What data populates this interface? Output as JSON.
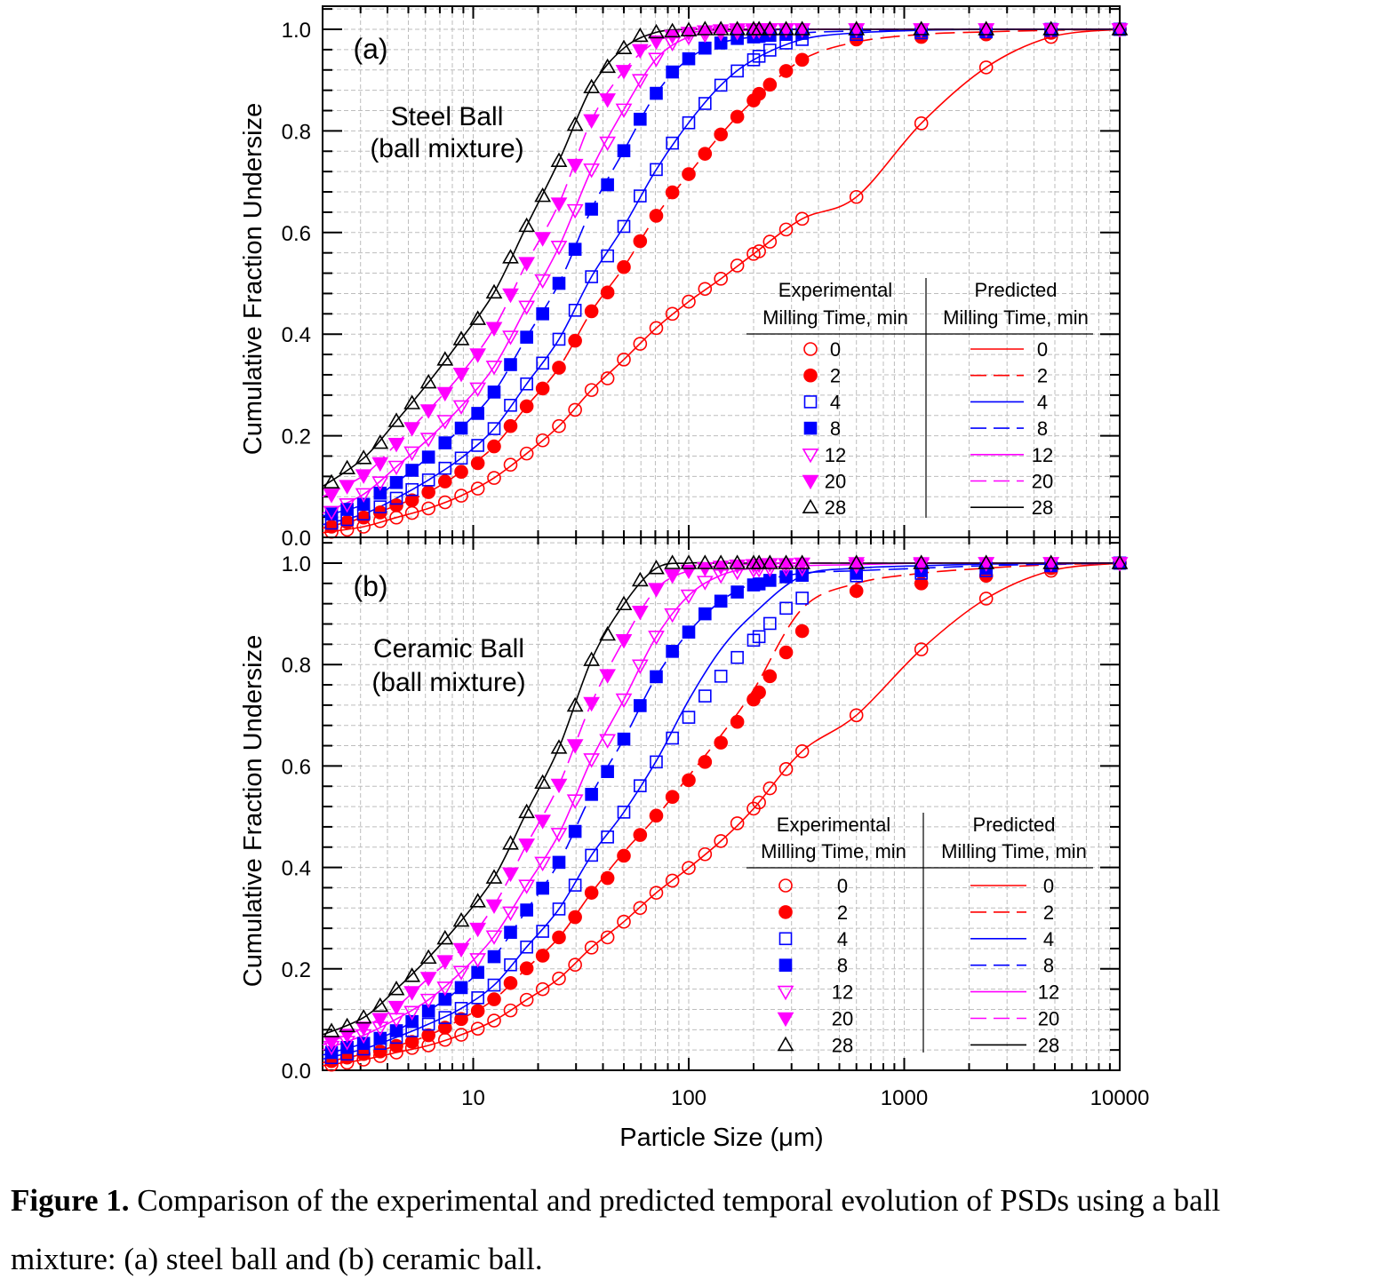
{
  "chart_data": {
    "type": "scatter",
    "x_axis": {
      "label": "Particle Size (μm)",
      "scale": "log",
      "range": [
        2,
        10000
      ],
      "ticks": [
        10,
        100,
        1000,
        10000
      ],
      "tick_labels": [
        "10",
        "100",
        "1000",
        "10000"
      ]
    },
    "y_axis": {
      "label": "Cumulative Fraction Undersize",
      "ticks": [
        0,
        0.2,
        0.4,
        0.6,
        0.8,
        1.0
      ],
      "tick_labels": [
        "0.0",
        "0.2",
        "0.4",
        "0.6",
        "0.8",
        "1.0"
      ]
    },
    "grid": true,
    "x_experimental": [
      2.2,
      2.6,
      3.1,
      3.7,
      4.4,
      5.2,
      6.2,
      7.4,
      8.8,
      10.5,
      12.5,
      14.9,
      17.7,
      21,
      25,
      29.7,
      35.4,
      42,
      50,
      59.5,
      70.7,
      84,
      100,
      119,
      141,
      168,
      200,
      212,
      238,
      283,
      336,
      600,
      1200,
      2400,
      4800,
      10000
    ],
    "x_predicted": [
      2,
      3.1,
      4.4,
      6.2,
      8.8,
      12.5,
      17.7,
      25,
      35.4,
      50,
      70.7,
      100,
      141,
      200,
      336,
      600,
      1200,
      2400,
      4800,
      10000
    ],
    "legend": {
      "experimental_header": [
        "Experimental",
        "Milling Time, min"
      ],
      "predicted_header": [
        "Predicted",
        "Milling Time, min"
      ],
      "placement": "bottom-right"
    },
    "series_styles": [
      {
        "name": "0",
        "color": "#ff0000",
        "marker": "open-circle",
        "line": "solid"
      },
      {
        "name": "2",
        "color": "#ff0000",
        "marker": "filled-circle",
        "line": "dashed"
      },
      {
        "name": "4",
        "color": "#0000ff",
        "marker": "open-square",
        "line": "solid"
      },
      {
        "name": "8",
        "color": "#0000ff",
        "marker": "filled-square",
        "line": "dashed"
      },
      {
        "name": "12",
        "color": "#ff00ff",
        "marker": "open-down-triangle",
        "line": "solid"
      },
      {
        "name": "20",
        "color": "#ff00ff",
        "marker": "filled-down-triangle",
        "line": "dashed"
      },
      {
        "name": "28",
        "color": "#000000",
        "marker": "open-up-triangle",
        "line": "solid"
      }
    ],
    "panels": [
      {
        "label": "(a)",
        "title_lines": [
          "Steel Ball",
          "(ball mixture)"
        ],
        "ylim": [
          0,
          1.045
        ],
        "experimental": [
          [
            0.011,
            0.015,
            0.021,
            0.032,
            0.039,
            0.048,
            0.057,
            0.069,
            0.082,
            0.096,
            0.117,
            0.143,
            0.165,
            0.191,
            0.219,
            0.251,
            0.29,
            0.313,
            0.35,
            0.381,
            0.412,
            0.44,
            0.464,
            0.489,
            0.509,
            0.535,
            0.558,
            0.563,
            0.582,
            0.606,
            0.627,
            0.67,
            0.815,
            0.925,
            0.985,
            1.0
          ],
          [
            0.021,
            0.03,
            0.039,
            0.049,
            0.063,
            0.073,
            0.089,
            0.11,
            0.129,
            0.146,
            0.179,
            0.219,
            0.258,
            0.293,
            0.334,
            0.387,
            0.445,
            0.482,
            0.532,
            0.583,
            0.633,
            0.679,
            0.715,
            0.755,
            0.793,
            0.828,
            0.86,
            0.873,
            0.891,
            0.918,
            0.94,
            0.98,
            0.985,
            0.99,
            0.993,
            1.0
          ],
          [
            0.028,
            0.035,
            0.046,
            0.06,
            0.077,
            0.094,
            0.113,
            0.136,
            0.156,
            0.181,
            0.214,
            0.26,
            0.302,
            0.343,
            0.39,
            0.447,
            0.513,
            0.554,
            0.612,
            0.672,
            0.724,
            0.776,
            0.816,
            0.854,
            0.89,
            0.918,
            0.94,
            0.947,
            0.959,
            0.973,
            0.98,
            0.99,
            0.993,
            0.995,
            0.998,
            1.0
          ],
          [
            0.046,
            0.055,
            0.065,
            0.087,
            0.108,
            0.132,
            0.158,
            0.186,
            0.215,
            0.244,
            0.286,
            0.34,
            0.394,
            0.44,
            0.5,
            0.567,
            0.646,
            0.694,
            0.761,
            0.823,
            0.874,
            0.916,
            0.942,
            0.963,
            0.973,
            0.982,
            0.985,
            0.986,
            0.988,
            0.99,
            0.992,
            0.995,
            0.997,
            0.998,
            1.0,
            1.0
          ],
          [
            0.05,
            0.065,
            0.085,
            0.108,
            0.139,
            0.167,
            0.194,
            0.229,
            0.258,
            0.293,
            0.336,
            0.395,
            0.454,
            0.506,
            0.572,
            0.644,
            0.724,
            0.777,
            0.842,
            0.9,
            0.942,
            0.973,
            0.985,
            0.99,
            0.993,
            0.995,
            0.997,
            0.998,
            1,
            1,
            1,
            1,
            1,
            1,
            1,
            1
          ],
          [
            0.084,
            0.101,
            0.122,
            0.146,
            0.184,
            0.215,
            0.25,
            0.284,
            0.322,
            0.36,
            0.412,
            0.478,
            0.54,
            0.589,
            0.657,
            0.733,
            0.821,
            0.862,
            0.918,
            0.959,
            0.976,
            0.987,
            0.993,
            0.996,
            0.998,
            1,
            1,
            1,
            1,
            1,
            1,
            1,
            1,
            1,
            1,
            1
          ],
          [
            0.108,
            0.136,
            0.156,
            0.186,
            0.229,
            0.264,
            0.305,
            0.35,
            0.39,
            0.43,
            0.482,
            0.551,
            0.613,
            0.672,
            0.741,
            0.812,
            0.886,
            0.926,
            0.963,
            0.987,
            0.994,
            0.996,
            0.998,
            1,
            1,
            1,
            1,
            1,
            1,
            1,
            1,
            1,
            1,
            1,
            1,
            1
          ]
        ],
        "predicted": [
          [
            0.009,
            0.021,
            0.039,
            0.057,
            0.082,
            0.117,
            0.165,
            0.219,
            0.29,
            0.35,
            0.412,
            0.464,
            0.509,
            0.558,
            0.627,
            0.67,
            0.815,
            0.925,
            0.985,
            1.0
          ],
          [
            0.018,
            0.039,
            0.063,
            0.089,
            0.129,
            0.179,
            0.258,
            0.334,
            0.445,
            0.532,
            0.633,
            0.715,
            0.793,
            0.86,
            0.94,
            0.975,
            0.99,
            0.995,
            0.998,
            1
          ],
          [
            0.025,
            0.046,
            0.077,
            0.113,
            0.156,
            0.214,
            0.302,
            0.39,
            0.513,
            0.612,
            0.724,
            0.816,
            0.89,
            0.94,
            0.98,
            0.993,
            0.998,
            1,
            1,
            1
          ],
          [
            0.042,
            0.065,
            0.108,
            0.158,
            0.215,
            0.286,
            0.394,
            0.5,
            0.646,
            0.761,
            0.874,
            0.942,
            0.973,
            0.985,
            0.993,
            0.997,
            1,
            1,
            1,
            1
          ],
          [
            0.047,
            0.085,
            0.139,
            0.194,
            0.258,
            0.336,
            0.454,
            0.572,
            0.724,
            0.842,
            0.942,
            0.985,
            0.995,
            0.998,
            1,
            1,
            1,
            1,
            1,
            1
          ],
          [
            0.08,
            0.122,
            0.184,
            0.25,
            0.322,
            0.412,
            0.54,
            0.657,
            0.821,
            0.918,
            0.976,
            0.993,
            0.998,
            1,
            1,
            1,
            1,
            1,
            1,
            1
          ],
          [
            0.1,
            0.156,
            0.229,
            0.305,
            0.39,
            0.482,
            0.613,
            0.741,
            0.886,
            0.963,
            0.994,
            1,
            1,
            1,
            1,
            1,
            1,
            1,
            1,
            1
          ]
        ]
      },
      {
        "label": "(b)",
        "title_lines": [
          "Ceramic Ball",
          "(ball mixture)"
        ],
        "ylim": [
          0,
          1.05
        ],
        "experimental": [
          [
            0.011,
            0.015,
            0.021,
            0.028,
            0.035,
            0.044,
            0.049,
            0.06,
            0.07,
            0.082,
            0.098,
            0.118,
            0.139,
            0.16,
            0.181,
            0.208,
            0.242,
            0.262,
            0.293,
            0.32,
            0.35,
            0.374,
            0.399,
            0.426,
            0.452,
            0.487,
            0.516,
            0.528,
            0.556,
            0.594,
            0.629,
            0.7,
            0.83,
            0.93,
            0.985,
            1.0
          ],
          [
            0.018,
            0.025,
            0.032,
            0.037,
            0.048,
            0.056,
            0.069,
            0.084,
            0.101,
            0.117,
            0.14,
            0.172,
            0.201,
            0.226,
            0.262,
            0.302,
            0.35,
            0.379,
            0.423,
            0.464,
            0.502,
            0.539,
            0.572,
            0.608,
            0.646,
            0.687,
            0.731,
            0.745,
            0.777,
            0.824,
            0.866,
            0.945,
            0.96,
            0.975,
            0.99,
            1.0
          ],
          [
            0.025,
            0.032,
            0.042,
            0.053,
            0.065,
            0.078,
            0.091,
            0.104,
            0.122,
            0.143,
            0.168,
            0.208,
            0.243,
            0.274,
            0.318,
            0.365,
            0.424,
            0.46,
            0.509,
            0.561,
            0.608,
            0.655,
            0.696,
            0.738,
            0.777,
            0.814,
            0.848,
            0.855,
            0.881,
            0.911,
            0.931,
            0.975,
            0.98,
            0.985,
            0.995,
            1.0
          ],
          [
            0.035,
            0.045,
            0.053,
            0.063,
            0.078,
            0.096,
            0.117,
            0.14,
            0.163,
            0.193,
            0.224,
            0.272,
            0.316,
            0.359,
            0.41,
            0.471,
            0.544,
            0.589,
            0.653,
            0.719,
            0.776,
            0.826,
            0.864,
            0.9,
            0.925,
            0.943,
            0.957,
            0.959,
            0.966,
            0.973,
            0.976,
            0.98,
            0.985,
            0.99,
            0.995,
            1.0
          ],
          [
            0.046,
            0.056,
            0.069,
            0.084,
            0.101,
            0.115,
            0.139,
            0.163,
            0.194,
            0.219,
            0.264,
            0.311,
            0.364,
            0.409,
            0.466,
            0.532,
            0.613,
            0.651,
            0.731,
            0.798,
            0.855,
            0.899,
            0.936,
            0.963,
            0.976,
            0.983,
            0.987,
            0.988,
            0.989,
            0.99,
            0.99,
            0.995,
            0.997,
            1,
            1,
            1
          ],
          [
            0.056,
            0.07,
            0.084,
            0.101,
            0.125,
            0.154,
            0.182,
            0.215,
            0.239,
            0.279,
            0.325,
            0.388,
            0.445,
            0.492,
            0.563,
            0.641,
            0.724,
            0.779,
            0.848,
            0.904,
            0.949,
            0.976,
            0.985,
            0.99,
            0.993,
            0.995,
            0.996,
            0.997,
            0.998,
            0.998,
            0.999,
            1,
            1,
            1,
            1,
            1
          ],
          [
            0.077,
            0.087,
            0.104,
            0.127,
            0.16,
            0.186,
            0.222,
            0.26,
            0.295,
            0.333,
            0.38,
            0.447,
            0.509,
            0.567,
            0.636,
            0.719,
            0.809,
            0.859,
            0.919,
            0.966,
            0.99,
            1,
            1,
            1,
            1,
            1,
            1,
            1,
            1,
            1,
            1,
            1,
            1,
            1,
            1,
            1
          ]
        ],
        "predicted": [
          [
            0.009,
            0.021,
            0.035,
            0.049,
            0.07,
            0.098,
            0.139,
            0.181,
            0.242,
            0.293,
            0.35,
            0.399,
            0.452,
            0.516,
            0.629,
            0.7,
            0.83,
            0.93,
            0.985,
            1
          ],
          [
            0.015,
            0.032,
            0.048,
            0.069,
            0.101,
            0.14,
            0.201,
            0.262,
            0.35,
            0.43,
            0.5,
            0.58,
            0.66,
            0.75,
            0.91,
            0.96,
            0.98,
            0.99,
            0.997,
            1
          ],
          [
            0.022,
            0.042,
            0.065,
            0.091,
            0.122,
            0.168,
            0.243,
            0.318,
            0.424,
            0.509,
            0.61,
            0.73,
            0.83,
            0.9,
            0.975,
            0.99,
            0.995,
            0.998,
            1,
            1
          ],
          [
            0.03,
            0.053,
            0.078,
            0.117,
            0.163,
            0.224,
            0.316,
            0.41,
            0.544,
            0.653,
            0.776,
            0.864,
            0.925,
            0.96,
            0.98,
            0.985,
            0.99,
            0.995,
            0.998,
            1
          ],
          [
            0.04,
            0.069,
            0.101,
            0.139,
            0.194,
            0.264,
            0.364,
            0.466,
            0.613,
            0.731,
            0.855,
            0.936,
            0.976,
            0.99,
            0.995,
            0.997,
            1,
            1,
            1,
            1
          ],
          [
            0.05,
            0.084,
            0.125,
            0.182,
            0.239,
            0.325,
            0.445,
            0.563,
            0.724,
            0.848,
            0.949,
            0.985,
            0.995,
            0.998,
            1,
            1,
            1,
            1,
            1,
            1
          ],
          [
            0.07,
            0.104,
            0.16,
            0.222,
            0.295,
            0.38,
            0.509,
            0.636,
            0.809,
            0.919,
            0.99,
            1,
            1,
            1,
            1,
            1,
            1,
            1,
            1,
            1
          ]
        ]
      }
    ]
  },
  "caption": {
    "label": "Figure 1.",
    "line1": " Comparison of the experimental and predicted temporal evolution of PSDs using a ball",
    "line2": "mixture: (a) steel ball and (b) ceramic ball."
  }
}
